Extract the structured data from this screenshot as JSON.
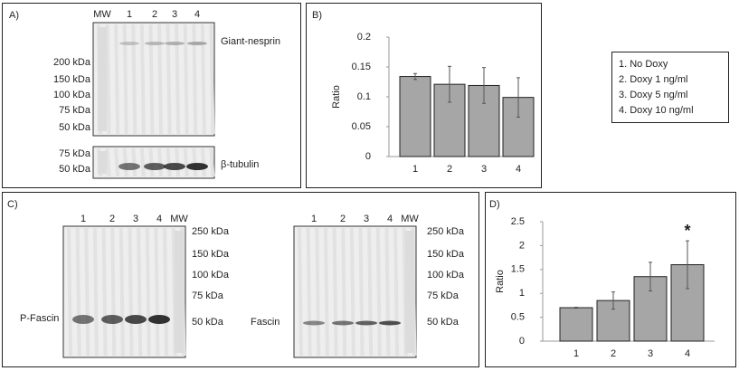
{
  "blots": {
    "A": {
      "panel": "A)",
      "lanes": [
        "MW",
        "1",
        "2",
        "3",
        "4"
      ],
      "markers": [
        "200 kDa",
        "150 kDa",
        "100 kDa",
        "75 kDa",
        "50 kDa"
      ],
      "target": "Giant-nesprin",
      "loading_markers": [
        "75 kDa",
        "50 kDa"
      ],
      "loading": "β-tubulin"
    },
    "C": {
      "panel": "C)",
      "blots": [
        {
          "lanes": [
            "1",
            "2",
            "3",
            "4",
            "MW"
          ],
          "markers": [
            "250 kDa",
            "150 kDa",
            "100 kDa",
            "75 kDa",
            "50 kDa"
          ],
          "name": "P-Fascin"
        },
        {
          "lanes": [
            "1",
            "2",
            "3",
            "4",
            "MW"
          ],
          "markers": [
            "250 kDa",
            "150 kDa",
            "100 kDa",
            "75 kDa",
            "50 kDa"
          ],
          "name": "Fascin"
        }
      ]
    }
  },
  "chart_data": [
    {
      "type": "bar",
      "panel": "B)",
      "y_label": "Ratio",
      "categories": [
        "1",
        "2",
        "3",
        "4"
      ],
      "values": [
        0.134,
        0.121,
        0.119,
        0.099
      ],
      "errors": [
        0.005,
        0.03,
        0.03,
        0.033
      ],
      "color": "#a6a6a6",
      "ylim": [
        0,
        0.2
      ],
      "yticks": [
        0,
        0.05,
        0.1,
        0.15,
        0.2
      ],
      "legend": [
        "1.  No Doxy",
        "2.  Doxy 1 ng/ml",
        "3.  Doxy 5 ng/ml",
        "4.  Doxy 10 ng/ml"
      ]
    },
    {
      "type": "bar",
      "panel": "D)",
      "y_label": "Ratio",
      "categories": [
        "1",
        "2",
        "3",
        "4"
      ],
      "values": [
        0.7,
        0.85,
        1.35,
        1.6
      ],
      "errors": [
        0.01,
        0.18,
        0.3,
        0.5
      ],
      "color": "#a6a6a6",
      "ylim": [
        0,
        2.5
      ],
      "yticks": [
        0,
        0.5,
        1,
        1.5,
        2,
        2.5
      ],
      "annotation": "*"
    }
  ]
}
